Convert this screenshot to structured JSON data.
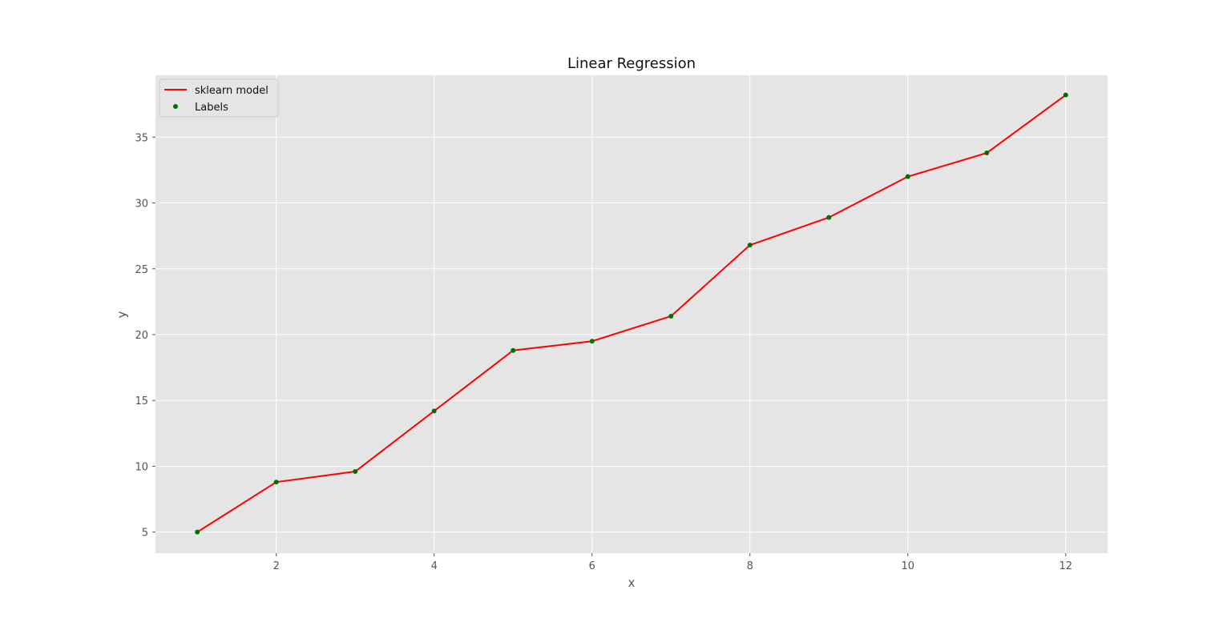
{
  "chart_data": {
    "type": "line",
    "title": "Linear Regression",
    "xlabel": "x",
    "ylabel": "y",
    "xlim": [
      0.47,
      12.53
    ],
    "ylim": [
      3.4,
      39.7
    ],
    "xticks": [
      2,
      4,
      6,
      8,
      10,
      12
    ],
    "yticks": [
      5,
      10,
      15,
      20,
      25,
      30,
      35
    ],
    "grid": true,
    "legend_position": "top-left",
    "x": [
      1,
      2,
      3,
      4,
      5,
      6,
      7,
      8,
      9,
      10,
      11,
      12
    ],
    "series": [
      {
        "name": "sklearn model",
        "kind": "line",
        "color": "#ff0000",
        "values": [
          5.0,
          8.8,
          9.6,
          14.2,
          18.8,
          19.5,
          21.4,
          26.8,
          28.9,
          32.0,
          33.8,
          38.2
        ]
      },
      {
        "name": "Labels",
        "kind": "scatter",
        "color": "#007000",
        "values": [
          5.0,
          8.8,
          9.6,
          14.2,
          18.8,
          19.5,
          21.4,
          26.8,
          28.9,
          32.0,
          33.8,
          38.2
        ]
      }
    ],
    "colors": {
      "plot_background": "#e5e5e5",
      "grid": "#ffffff"
    }
  }
}
